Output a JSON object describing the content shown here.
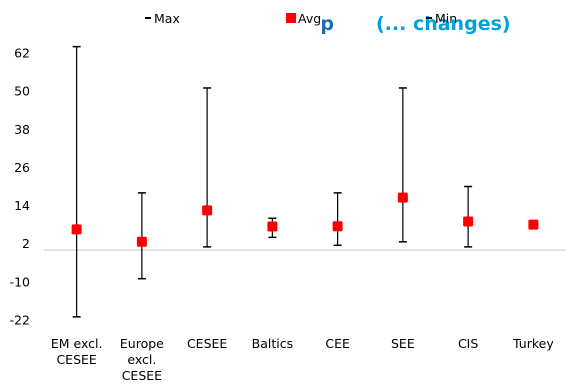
{
  "chart_data": {
    "type": "range",
    "title_fragment_bold": "p",
    "title_fragment_light": "(... changes)",
    "categories": [
      "EM excl. CESEE",
      "Europe excl. CESEE",
      "CESEE",
      "Baltics",
      "CEE",
      "SEE",
      "CIS",
      "Turkey"
    ],
    "category_lines": [
      [
        "EM excl.",
        "CESEE"
      ],
      [
        "Europe",
        "excl.",
        "CESEE"
      ],
      [
        "CESEE"
      ],
      [
        "Baltics"
      ],
      [
        "CEE"
      ],
      [
        "SEE"
      ],
      [
        "CIS"
      ],
      [
        "Turkey"
      ]
    ],
    "series": [
      {
        "name": "Max",
        "values": [
          64,
          18,
          51,
          10,
          18,
          51,
          20,
          8
        ]
      },
      {
        "name": "Avg",
        "values": [
          6.5,
          2.6,
          12.5,
          7.4,
          7.5,
          16.5,
          9,
          8
        ]
      },
      {
        "name": "Min",
        "values": [
          -21,
          -9,
          1,
          4,
          1.5,
          2.6,
          1,
          8
        ]
      }
    ],
    "yticks": [
      62,
      50,
      38,
      26,
      14,
      2,
      -10,
      -22
    ],
    "ylim": [
      -22,
      68
    ],
    "legend_position": "top",
    "colors": {
      "avg": "#ff0000",
      "whisker": "#000000",
      "zero_line": "#d9d9d9",
      "title_bold": "#1f6bb4",
      "title_light": "#00a3d9"
    }
  }
}
